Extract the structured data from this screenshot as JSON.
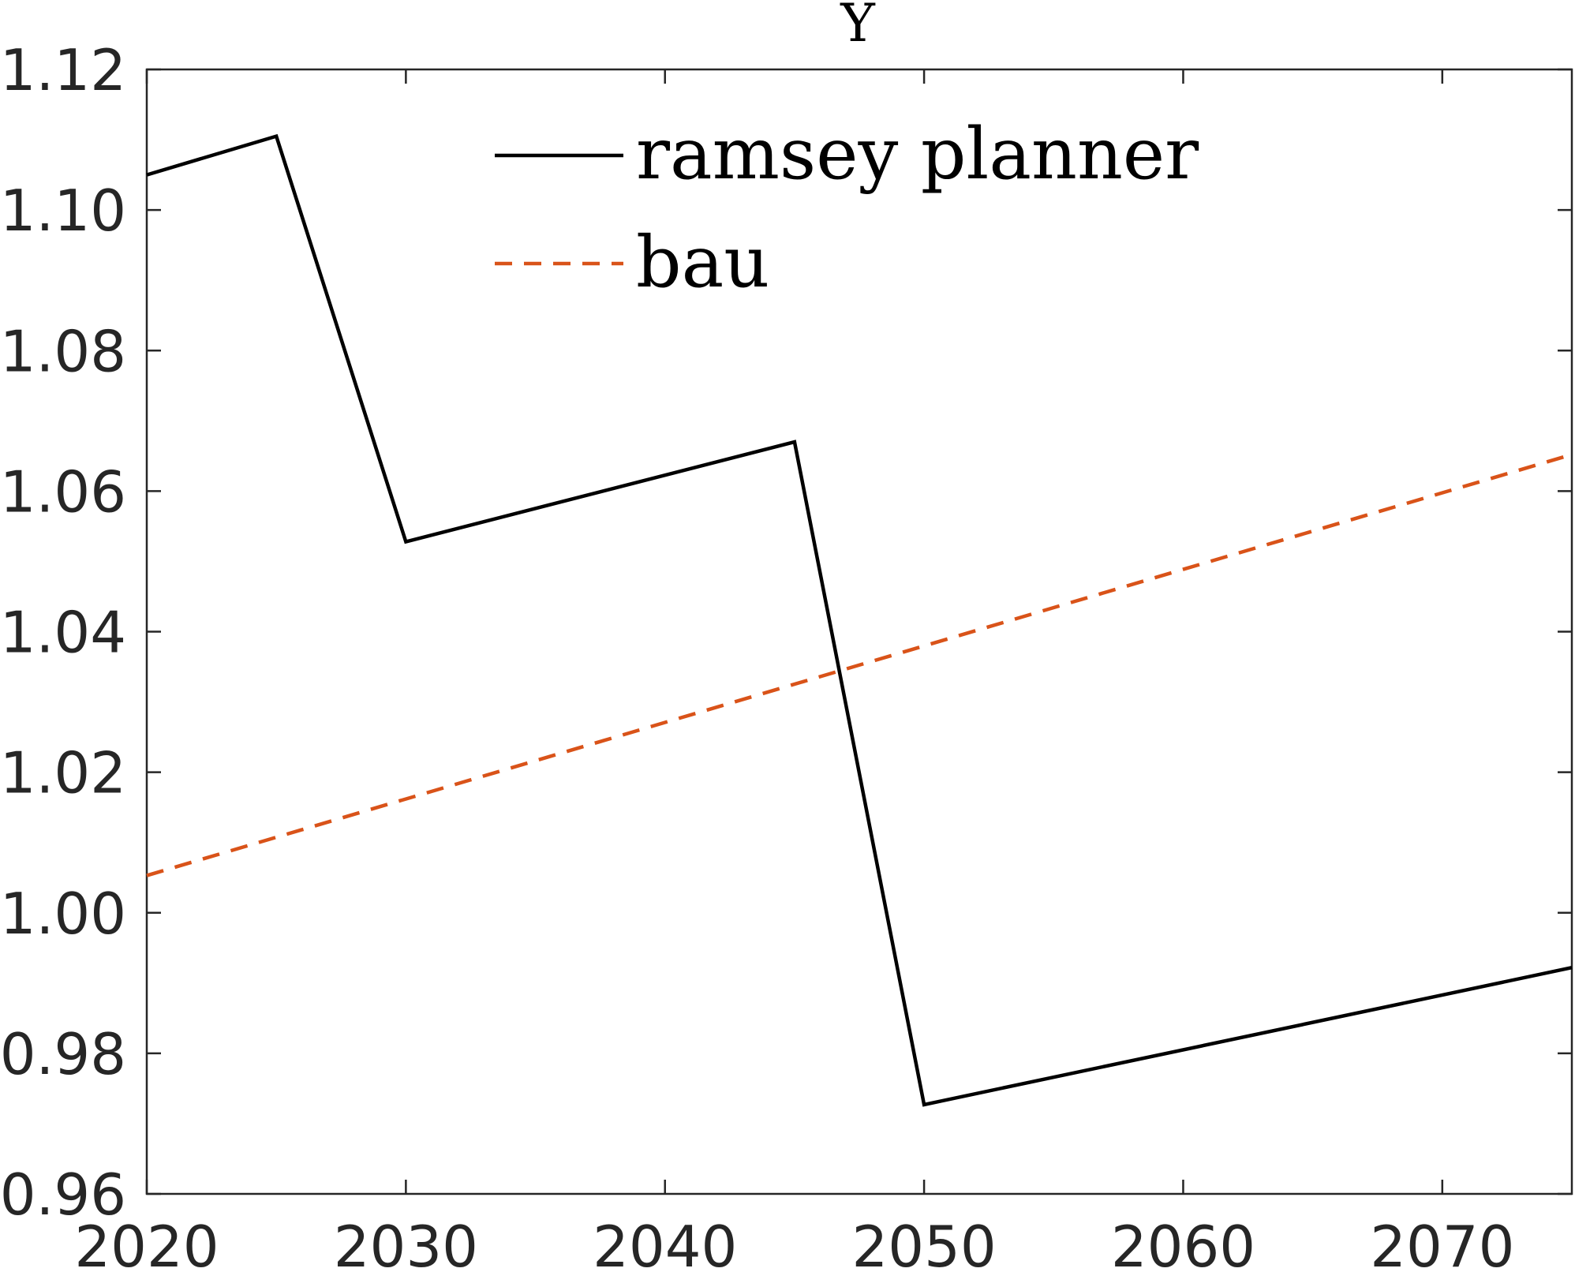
{
  "chart_data": {
    "type": "line",
    "title": "Y",
    "xlabel": "",
    "ylabel": "",
    "xlim": [
      2020,
      2075
    ],
    "ylim": [
      0.96,
      1.12
    ],
    "xticks": [
      2020,
      2030,
      2040,
      2050,
      2060,
      2070
    ],
    "xtick_labels": [
      "2020",
      "2030",
      "2040",
      "2050",
      "2060",
      "2070"
    ],
    "yticks": [
      0.96,
      0.98,
      1.0,
      1.02,
      1.04,
      1.06,
      1.08,
      1.1,
      1.12
    ],
    "ytick_labels": [
      "0.96",
      "0.98",
      "1.00",
      "1.02",
      "1.04",
      "1.06",
      "1.08",
      "1.10",
      "1.12"
    ],
    "grid": false,
    "legend_position": "top-center",
    "series": [
      {
        "name": "ramsey planner",
        "color": "#000000",
        "style": "solid",
        "x": [
          2020,
          2025,
          2030,
          2045,
          2050,
          2075
        ],
        "y": [
          1.105,
          1.1105,
          1.0528,
          1.067,
          0.9727,
          0.9922
        ]
      },
      {
        "name": "bau",
        "color": "#D95319",
        "style": "dashed",
        "x": [
          2020,
          2075
        ],
        "y": [
          1.0053,
          1.0652
        ]
      }
    ]
  }
}
